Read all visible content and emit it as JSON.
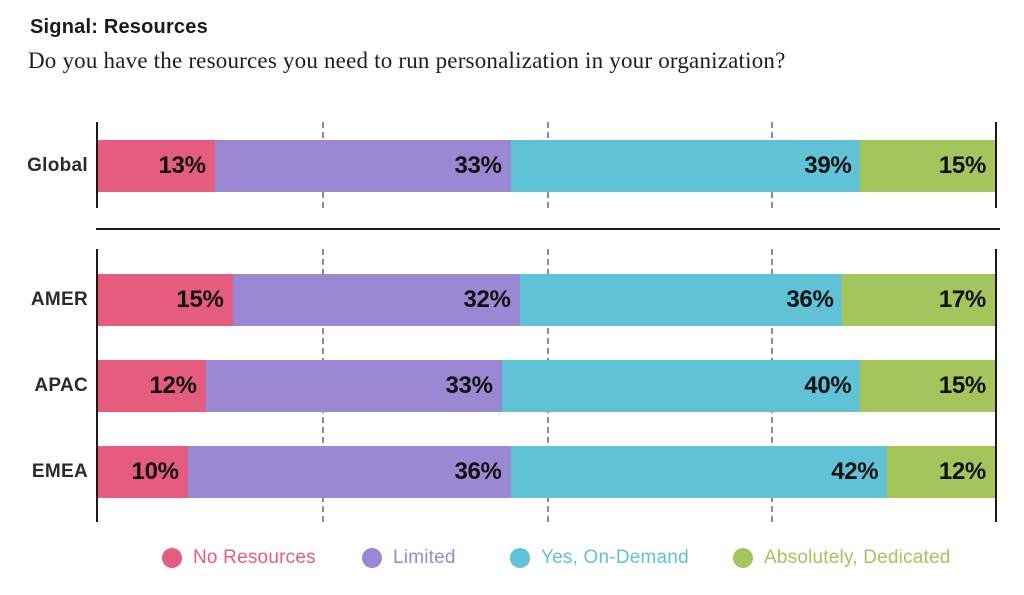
{
  "header": {
    "title": "Signal: Resources",
    "subtitle": "Do you have the resources you need to run personalization in your organization?"
  },
  "chart_data": {
    "type": "bar",
    "variant": "horizontal-stacked",
    "unit": "%",
    "axis_range": [
      0,
      100
    ],
    "gridlines_percent": [
      0,
      25,
      50,
      75,
      100
    ],
    "grid_style": "outer solid black, inner dashed gray",
    "categories": [
      "Global",
      "AMER",
      "APAC",
      "EMEA"
    ],
    "series": [
      {
        "name": "No Resources",
        "color": "#E65C7E",
        "values": [
          13,
          15,
          12,
          10
        ]
      },
      {
        "name": "Limited",
        "color": "#9A88D5",
        "values": [
          33,
          32,
          33,
          36
        ]
      },
      {
        "name": "Yes, On-Demand",
        "color": "#5FC2D6",
        "values": [
          39,
          36,
          40,
          42
        ]
      },
      {
        "name": "Absolutely, Dedicated",
        "color": "#A4C45C",
        "values": [
          15,
          17,
          15,
          12
        ]
      }
    ],
    "value_label_format": "{value}%",
    "legend": {
      "position": "bottom",
      "items": [
        "No Resources",
        "Limited",
        "Yes, On-Demand",
        "Absolutely, Dedicated"
      ]
    },
    "layout_note": "Global row separated from AMER/APAC/EMEA by a horizontal rule"
  }
}
